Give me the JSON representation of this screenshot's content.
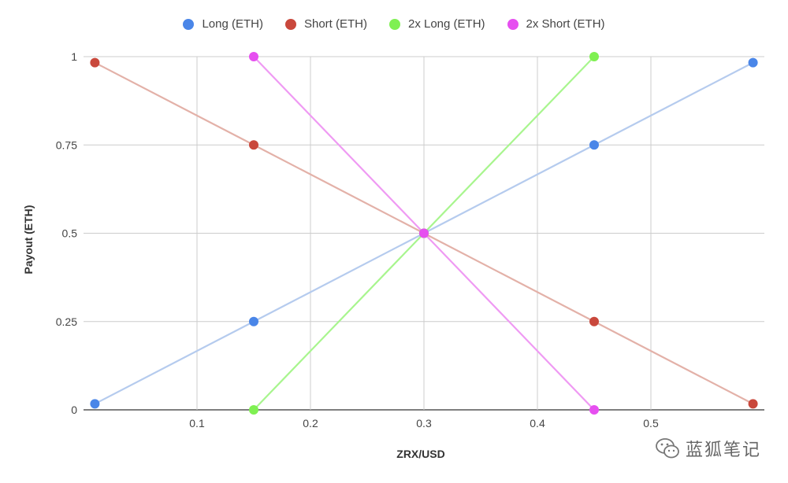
{
  "chart_data": {
    "type": "line",
    "xlabel": "ZRX/USD",
    "ylabel": "Payout (ETH)",
    "xlim": [
      0.0,
      0.6
    ],
    "ylim": [
      0,
      1
    ],
    "x_ticks": [
      0.1,
      0.2,
      0.3,
      0.4,
      0.5
    ],
    "x_tick_labels": [
      "0.1",
      "0.2",
      "0.3",
      "0.4",
      "0.5"
    ],
    "y_ticks": [
      0,
      0.25,
      0.5,
      0.75,
      1
    ],
    "y_tick_labels": [
      "0",
      "0.25",
      "0.5",
      "0.75",
      "1"
    ],
    "grid": true,
    "legend_position": "top",
    "series": [
      {
        "name": "Long (ETH)",
        "color": "#4a86e8",
        "line_color": "#b5cbee",
        "x": [
          0.01,
          0.15,
          0.3,
          0.45,
          0.59
        ],
        "y": [
          0.017,
          0.25,
          0.5,
          0.75,
          0.983
        ]
      },
      {
        "name": "Short (ETH)",
        "color": "#c9483c",
        "line_color": "#e3b1a8",
        "x": [
          0.01,
          0.15,
          0.3,
          0.45,
          0.59
        ],
        "y": [
          0.983,
          0.75,
          0.5,
          0.25,
          0.017
        ]
      },
      {
        "name": "2x Long (ETH)",
        "color": "#7ff052",
        "line_color": "#a8f58e",
        "x": [
          0.15,
          0.3,
          0.45
        ],
        "y": [
          0,
          0.5,
          1
        ]
      },
      {
        "name": "2x Short (ETH)",
        "color": "#e64ff0",
        "line_color": "#ef9af3",
        "x": [
          0.15,
          0.3,
          0.45
        ],
        "y": [
          1,
          0.5,
          0
        ]
      }
    ]
  },
  "watermark": {
    "text": "蓝狐笔记",
    "icon": "wechat-icon"
  }
}
